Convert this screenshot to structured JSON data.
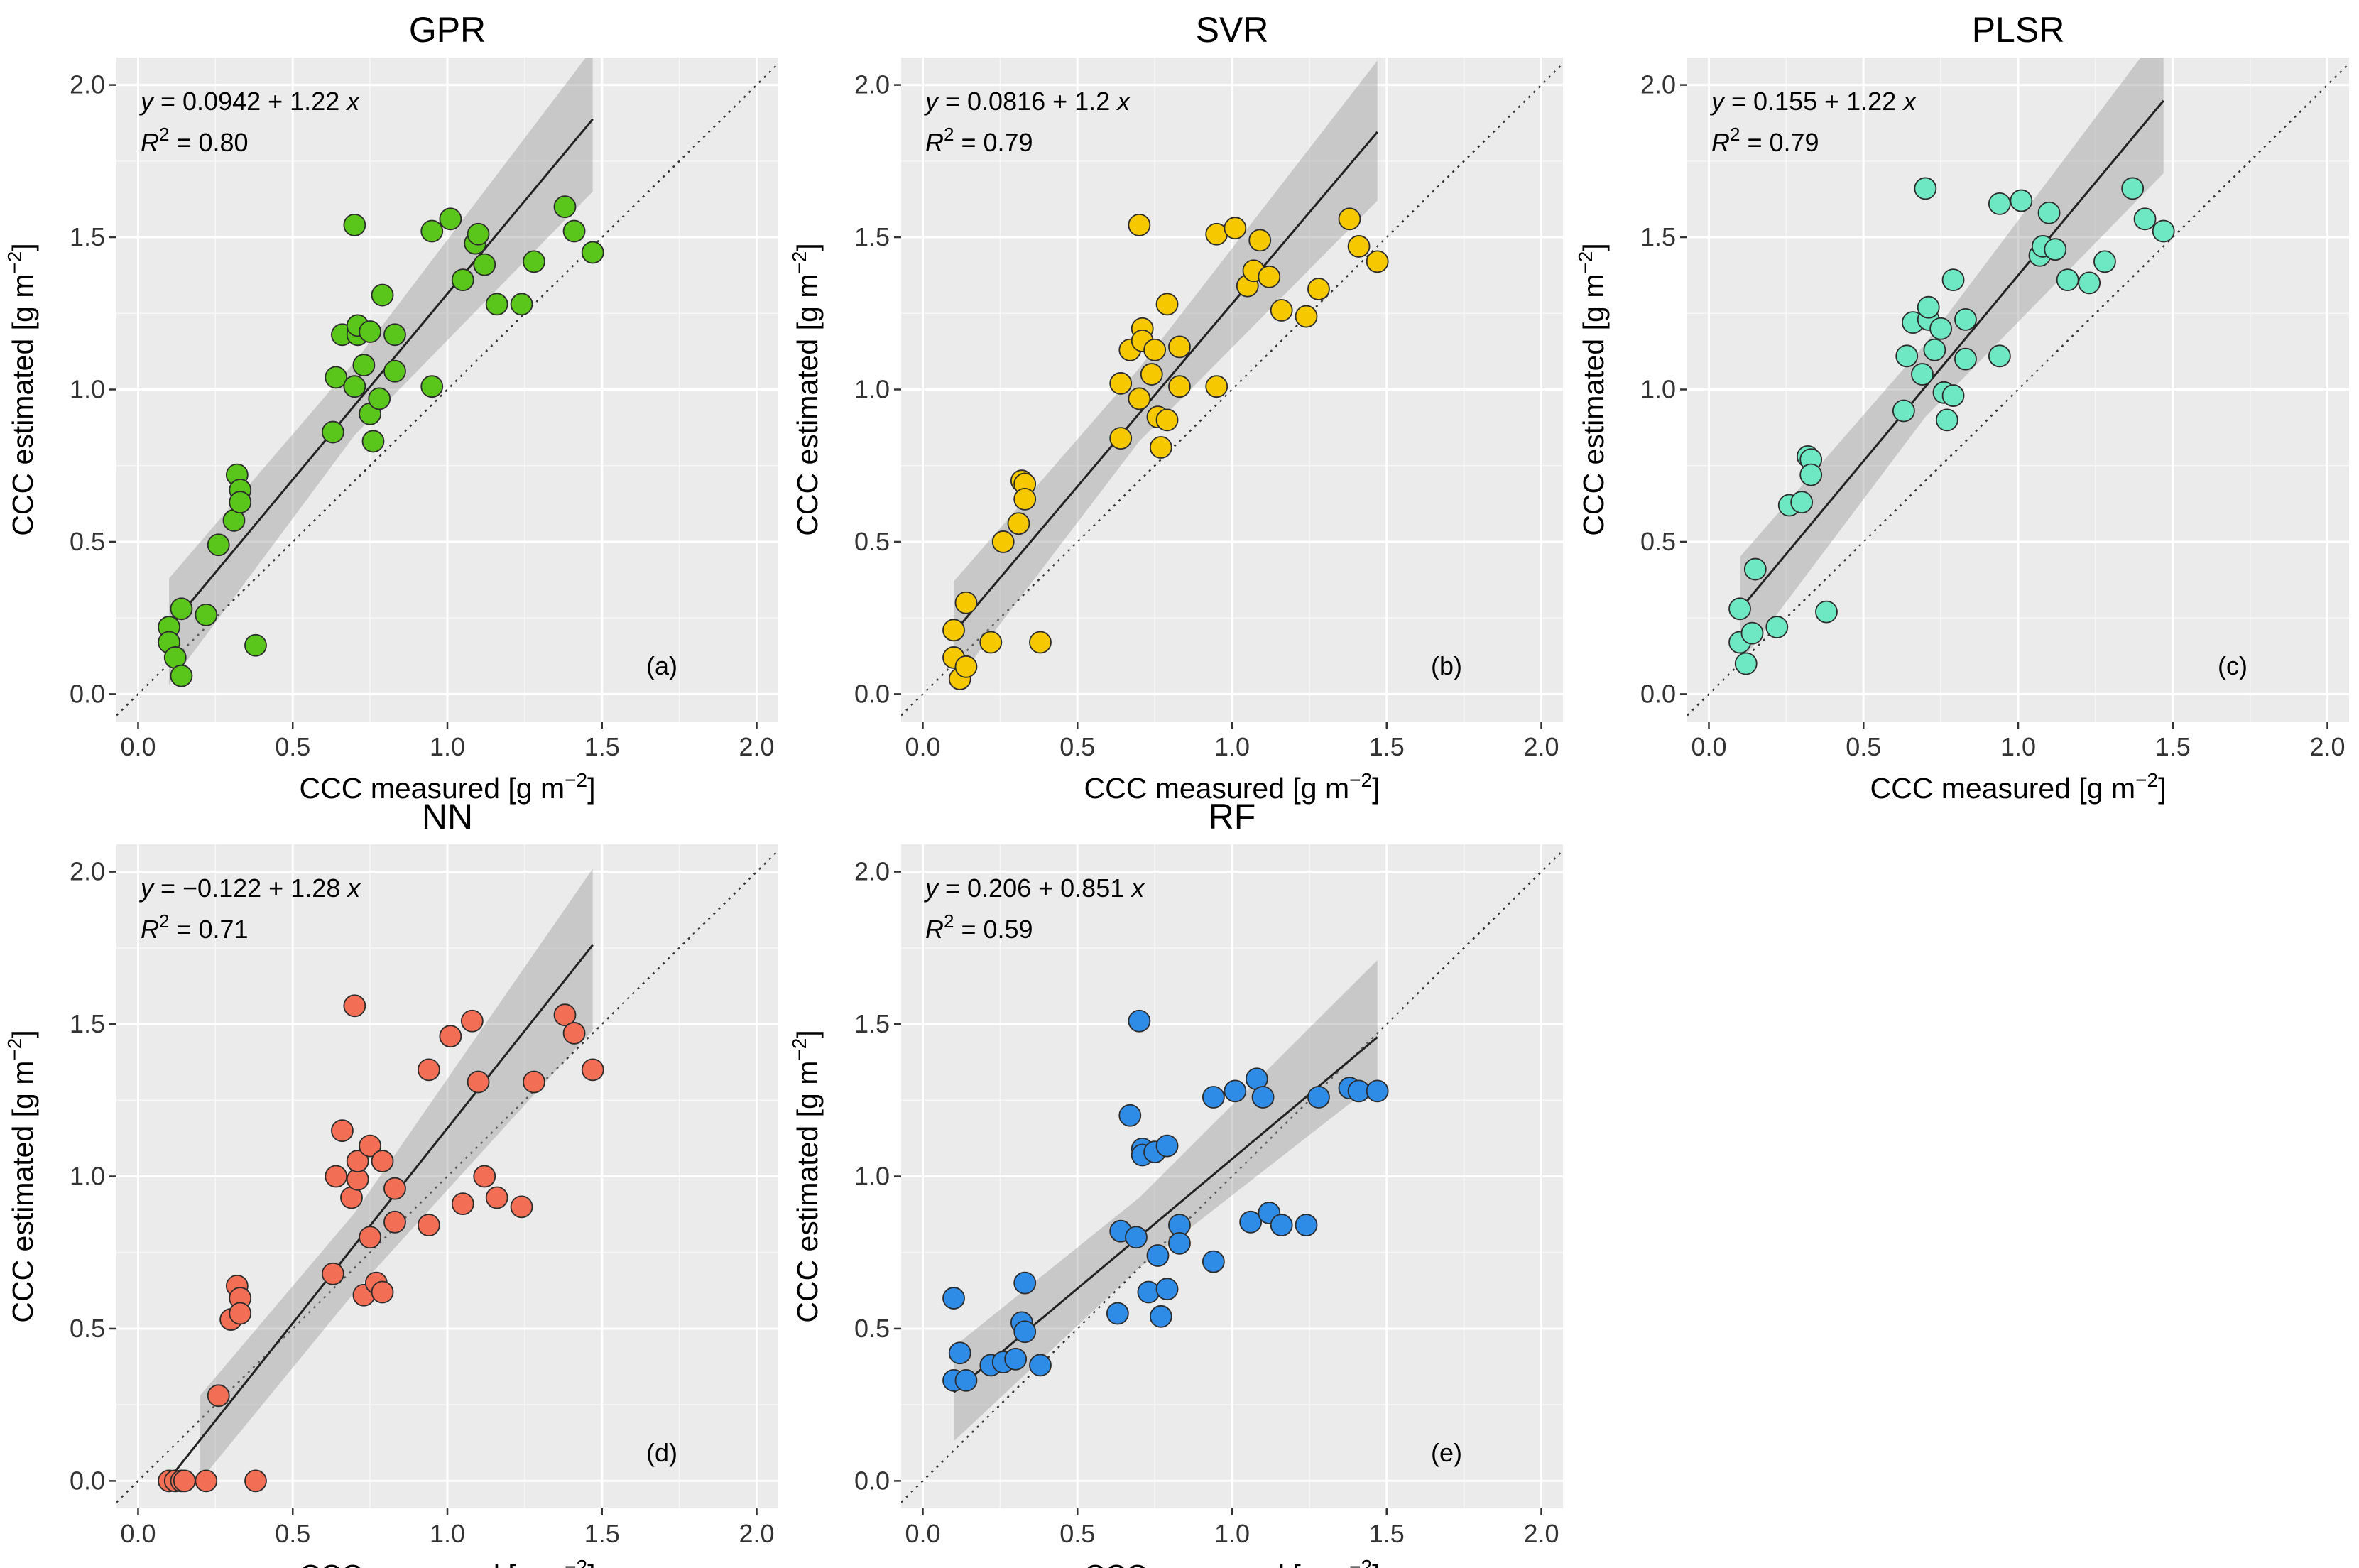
{
  "chart_data": [
    {
      "type": "scatter",
      "title": "GPR",
      "xlabel": "CCC measured [g m",
      "ylabel": "CCC estimated [g m",
      "unit_exponent": "−2",
      "xlim": [
        -0.07,
        2.07
      ],
      "ylim": [
        -0.09,
        2.09
      ],
      "x_ticks": [
        "0.0",
        "0.5",
        "1.0",
        "1.5",
        "2.0"
      ],
      "y_ticks": [
        "0.0",
        "0.5",
        "1.0",
        "1.5",
        "2.0"
      ],
      "equation": "y = 0.0942 + 1.22 x",
      "r2": "0.80",
      "panel_label": "(a)",
      "color": "#5ac51a",
      "fit": {
        "intercept": 0.0942,
        "slope": 1.22,
        "x_range": [
          0.1,
          1.47
        ]
      },
      "ci_band": [
        [
          0.1,
          0.03,
          0.38
        ],
        [
          0.7,
          0.85,
          1.09
        ],
        [
          1.47,
          1.65,
          2.12
        ]
      ],
      "points": [
        [
          0.1,
          0.22
        ],
        [
          0.1,
          0.17
        ],
        [
          0.12,
          0.12
        ],
        [
          0.14,
          0.06
        ],
        [
          0.14,
          0.28
        ],
        [
          0.22,
          0.26
        ],
        [
          0.26,
          0.49
        ],
        [
          0.31,
          0.57
        ],
        [
          0.32,
          0.72
        ],
        [
          0.33,
          0.67
        ],
        [
          0.33,
          0.63
        ],
        [
          0.38,
          0.16
        ],
        [
          0.63,
          0.86
        ],
        [
          0.64,
          1.04
        ],
        [
          0.66,
          1.18
        ],
        [
          0.7,
          1.01
        ],
        [
          0.7,
          1.54
        ],
        [
          0.71,
          1.18
        ],
        [
          0.71,
          1.21
        ],
        [
          0.73,
          1.08
        ],
        [
          0.75,
          1.19
        ],
        [
          0.75,
          0.92
        ],
        [
          0.76,
          0.83
        ],
        [
          0.78,
          0.97
        ],
        [
          0.79,
          1.31
        ],
        [
          0.83,
          1.18
        ],
        [
          0.83,
          1.06
        ],
        [
          0.95,
          1.52
        ],
        [
          0.95,
          1.01
        ],
        [
          1.01,
          1.56
        ],
        [
          1.05,
          1.36
        ],
        [
          1.09,
          1.48
        ],
        [
          1.1,
          1.51
        ],
        [
          1.12,
          1.41
        ],
        [
          1.16,
          1.28
        ],
        [
          1.24,
          1.28
        ],
        [
          1.28,
          1.42
        ],
        [
          1.38,
          1.6
        ],
        [
          1.41,
          1.52
        ],
        [
          1.47,
          1.45
        ]
      ]
    },
    {
      "type": "scatter",
      "title": "SVR",
      "xlabel": "CCC measured [g m",
      "ylabel": "CCC estimated [g m",
      "unit_exponent": "−2",
      "xlim": [
        -0.07,
        2.07
      ],
      "ylim": [
        -0.09,
        2.09
      ],
      "x_ticks": [
        "0.0",
        "0.5",
        "1.0",
        "1.5",
        "2.0"
      ],
      "y_ticks": [
        "0.0",
        "0.5",
        "1.0",
        "1.5",
        "2.0"
      ],
      "equation": "y = 0.0816 + 1.2 x",
      "r2": "0.79",
      "panel_label": "(b)",
      "color": "#f5c800",
      "fit": {
        "intercept": 0.0816,
        "slope": 1.2,
        "x_range": [
          0.1,
          1.47
        ]
      },
      "ci_band": [
        [
          0.1,
          0.03,
          0.37
        ],
        [
          0.7,
          0.83,
          1.07
        ],
        [
          1.47,
          1.62,
          2.08
        ]
      ],
      "points": [
        [
          0.1,
          0.21
        ],
        [
          0.1,
          0.12
        ],
        [
          0.12,
          0.05
        ],
        [
          0.14,
          0.09
        ],
        [
          0.14,
          0.3
        ],
        [
          0.22,
          0.17
        ],
        [
          0.26,
          0.5
        ],
        [
          0.31,
          0.56
        ],
        [
          0.32,
          0.7
        ],
        [
          0.33,
          0.69
        ],
        [
          0.33,
          0.64
        ],
        [
          0.38,
          0.17
        ],
        [
          0.64,
          0.84
        ],
        [
          0.64,
          1.02
        ],
        [
          0.67,
          1.13
        ],
        [
          0.7,
          0.97
        ],
        [
          0.7,
          1.54
        ],
        [
          0.71,
          1.2
        ],
        [
          0.71,
          1.16
        ],
        [
          0.74,
          1.05
        ],
        [
          0.75,
          1.13
        ],
        [
          0.76,
          0.91
        ],
        [
          0.77,
          0.81
        ],
        [
          0.79,
          0.9
        ],
        [
          0.79,
          1.28
        ],
        [
          0.83,
          1.14
        ],
        [
          0.83,
          1.01
        ],
        [
          0.95,
          1.51
        ],
        [
          0.95,
          1.01
        ],
        [
          1.01,
          1.53
        ],
        [
          1.05,
          1.34
        ],
        [
          1.07,
          1.39
        ],
        [
          1.09,
          1.49
        ],
        [
          1.12,
          1.37
        ],
        [
          1.16,
          1.26
        ],
        [
          1.24,
          1.24
        ],
        [
          1.28,
          1.33
        ],
        [
          1.38,
          1.56
        ],
        [
          1.41,
          1.47
        ],
        [
          1.47,
          1.42
        ]
      ]
    },
    {
      "type": "scatter",
      "title": "PLSR",
      "xlabel": "CCC measured [g m",
      "ylabel": "CCC estimated [g m",
      "unit_exponent": "−2",
      "xlim": [
        -0.07,
        2.07
      ],
      "ylim": [
        -0.09,
        2.09
      ],
      "x_ticks": [
        "0.0",
        "0.5",
        "1.0",
        "1.5",
        "2.0"
      ],
      "y_ticks": [
        "0.0",
        "0.5",
        "1.0",
        "1.5",
        "2.0"
      ],
      "equation": "y = 0.155 + 1.22 x",
      "r2": "0.79",
      "panel_label": "(c)",
      "color": "#6ee8c2",
      "fit": {
        "intercept": 0.155,
        "slope": 1.22,
        "x_range": [
          0.1,
          1.47
        ]
      },
      "ci_band": [
        [
          0.1,
          0.1,
          0.45
        ],
        [
          0.7,
          0.91,
          1.15
        ],
        [
          1.47,
          1.71,
          2.19
        ]
      ],
      "points": [
        [
          0.1,
          0.28
        ],
        [
          0.1,
          0.17
        ],
        [
          0.12,
          0.1
        ],
        [
          0.14,
          0.2
        ],
        [
          0.15,
          0.41
        ],
        [
          0.22,
          0.22
        ],
        [
          0.26,
          0.62
        ],
        [
          0.3,
          0.63
        ],
        [
          0.32,
          0.78
        ],
        [
          0.33,
          0.77
        ],
        [
          0.33,
          0.72
        ],
        [
          0.38,
          0.27
        ],
        [
          0.63,
          0.93
        ],
        [
          0.64,
          1.11
        ],
        [
          0.66,
          1.22
        ],
        [
          0.69,
          1.05
        ],
        [
          0.7,
          1.66
        ],
        [
          0.71,
          1.23
        ],
        [
          0.71,
          1.27
        ],
        [
          0.73,
          1.13
        ],
        [
          0.75,
          1.2
        ],
        [
          0.76,
          0.99
        ],
        [
          0.77,
          0.9
        ],
        [
          0.79,
          0.98
        ],
        [
          0.79,
          1.36
        ],
        [
          0.83,
          1.23
        ],
        [
          0.83,
          1.1
        ],
        [
          0.94,
          1.61
        ],
        [
          0.94,
          1.11
        ],
        [
          1.01,
          1.62
        ],
        [
          1.07,
          1.44
        ],
        [
          1.08,
          1.47
        ],
        [
          1.1,
          1.58
        ],
        [
          1.12,
          1.46
        ],
        [
          1.16,
          1.36
        ],
        [
          1.23,
          1.35
        ],
        [
          1.28,
          1.42
        ],
        [
          1.37,
          1.66
        ],
        [
          1.41,
          1.56
        ],
        [
          1.47,
          1.52
        ]
      ]
    },
    {
      "type": "scatter",
      "title": "NN",
      "xlabel": "CCC measured [g m",
      "ylabel": "CCC estimated [g m",
      "unit_exponent": "−2",
      "xlim": [
        -0.07,
        2.07
      ],
      "ylim": [
        -0.09,
        2.09
      ],
      "x_ticks": [
        "0.0",
        "0.5",
        "1.0",
        "1.5",
        "2.0"
      ],
      "y_ticks": [
        "0.0",
        "0.5",
        "1.0",
        "1.5",
        "2.0"
      ],
      "equation": "y = −0.122 + 1.28 x",
      "r2": "0.71",
      "panel_label": "(d)",
      "color": "#f26e55",
      "fit": {
        "intercept": -0.122,
        "slope": 1.28,
        "x_range": [
          0.1,
          1.47
        ]
      },
      "ci_band": [
        [
          0.2,
          0.0,
          0.28
        ],
        [
          0.7,
          0.62,
          0.88
        ],
        [
          1.47,
          1.48,
          2.01
        ]
      ],
      "points": [
        [
          0.1,
          0.0
        ],
        [
          0.12,
          0.0
        ],
        [
          0.14,
          0.0
        ],
        [
          0.15,
          0.0
        ],
        [
          0.22,
          0.0
        ],
        [
          0.26,
          0.28
        ],
        [
          0.3,
          0.53
        ],
        [
          0.32,
          0.64
        ],
        [
          0.33,
          0.6
        ],
        [
          0.33,
          0.55
        ],
        [
          0.38,
          0.0
        ],
        [
          0.63,
          0.68
        ],
        [
          0.64,
          1.0
        ],
        [
          0.66,
          1.15
        ],
        [
          0.69,
          0.93
        ],
        [
          0.7,
          1.56
        ],
        [
          0.71,
          0.99
        ],
        [
          0.71,
          1.05
        ],
        [
          0.73,
          0.61
        ],
        [
          0.75,
          1.1
        ],
        [
          0.75,
          0.8
        ],
        [
          0.77,
          0.65
        ],
        [
          0.79,
          0.62
        ],
        [
          0.79,
          1.05
        ],
        [
          0.83,
          0.96
        ],
        [
          0.83,
          0.85
        ],
        [
          0.94,
          1.35
        ],
        [
          0.94,
          0.84
        ],
        [
          1.01,
          1.46
        ],
        [
          1.05,
          0.91
        ],
        [
          1.08,
          1.51
        ],
        [
          1.1,
          1.31
        ],
        [
          1.12,
          1.0
        ],
        [
          1.16,
          0.93
        ],
        [
          1.24,
          0.9
        ],
        [
          1.28,
          1.31
        ],
        [
          1.38,
          1.53
        ],
        [
          1.41,
          1.47
        ],
        [
          1.47,
          1.35
        ]
      ]
    },
    {
      "type": "scatter",
      "title": "RF",
      "xlabel": "CCC measured [g m",
      "ylabel": "CCC estimated [g m",
      "unit_exponent": "−2",
      "xlim": [
        -0.07,
        2.07
      ],
      "ylim": [
        -0.09,
        2.09
      ],
      "x_ticks": [
        "0.0",
        "0.5",
        "1.0",
        "1.5",
        "2.0"
      ],
      "y_ticks": [
        "0.0",
        "0.5",
        "1.0",
        "1.5",
        "2.0"
      ],
      "equation": "y = 0.206 + 0.851 x",
      "r2": "0.59",
      "panel_label": "(e)",
      "color": "#2e8be6",
      "fit": {
        "intercept": 0.206,
        "slope": 0.851,
        "x_range": [
          0.1,
          1.47
        ]
      },
      "ci_band": [
        [
          0.1,
          0.13,
          0.44
        ],
        [
          0.7,
          0.7,
          0.93
        ],
        [
          1.47,
          1.31,
          1.71
        ]
      ],
      "points": [
        [
          0.1,
          0.6
        ],
        [
          0.1,
          0.33
        ],
        [
          0.12,
          0.42
        ],
        [
          0.14,
          0.33
        ],
        [
          0.22,
          0.38
        ],
        [
          0.26,
          0.39
        ],
        [
          0.3,
          0.4
        ],
        [
          0.32,
          0.52
        ],
        [
          0.33,
          0.49
        ],
        [
          0.33,
          0.65
        ],
        [
          0.38,
          0.38
        ],
        [
          0.63,
          0.55
        ],
        [
          0.64,
          0.82
        ],
        [
          0.67,
          1.2
        ],
        [
          0.69,
          0.8
        ],
        [
          0.7,
          1.51
        ],
        [
          0.71,
          1.09
        ],
        [
          0.71,
          1.07
        ],
        [
          0.73,
          0.62
        ],
        [
          0.75,
          1.08
        ],
        [
          0.76,
          0.74
        ],
        [
          0.77,
          0.54
        ],
        [
          0.79,
          1.1
        ],
        [
          0.79,
          0.63
        ],
        [
          0.83,
          0.84
        ],
        [
          0.83,
          0.78
        ],
        [
          0.94,
          1.26
        ],
        [
          0.94,
          0.72
        ],
        [
          1.01,
          1.28
        ],
        [
          1.06,
          0.85
        ],
        [
          1.08,
          1.32
        ],
        [
          1.1,
          1.26
        ],
        [
          1.12,
          0.88
        ],
        [
          1.16,
          0.84
        ],
        [
          1.24,
          0.84
        ],
        [
          1.28,
          1.26
        ],
        [
          1.38,
          1.29
        ],
        [
          1.41,
          1.28
        ],
        [
          1.47,
          1.28
        ]
      ]
    }
  ]
}
